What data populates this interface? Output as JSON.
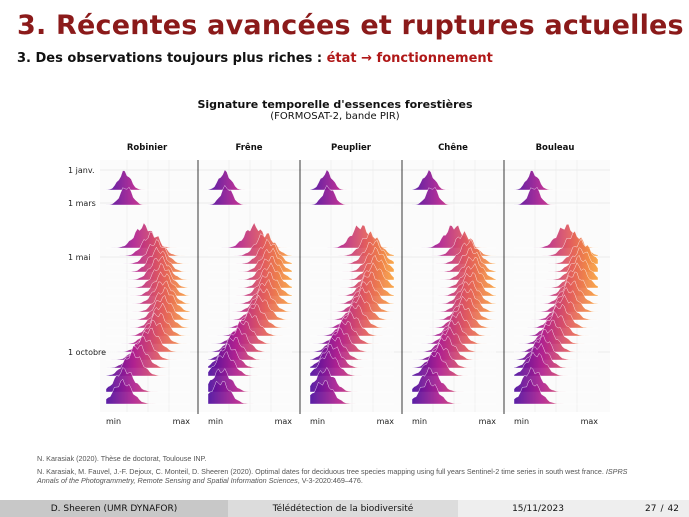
{
  "slide": {
    "title": "3. Récentes avancées et ruptures actuelles",
    "subtitle_prefix": "3. Des observations toujours plus riches : ",
    "subtitle_accent": "état → fonctionnement"
  },
  "chart_data": {
    "type": "ridgeline",
    "title": "Signature temporelle d'essences forestières",
    "subtitle": "(FORMOSAT-2, bande PIR)",
    "panels": [
      "Robinier",
      "Frêne",
      "Peuplier",
      "Chêne",
      "Bouleau"
    ],
    "date_labels": [
      "1 janv.",
      "1 mars",
      "1 mai",
      "1 octobre"
    ],
    "x_min_label": "min",
    "x_max_label": "max",
    "colorscale": [
      "#4b0c9e",
      "#b0208f",
      "#e25c5c",
      "#f9a13a"
    ],
    "ridge_peaks": {
      "Robinier": [
        0.22,
        0.24,
        0.45,
        0.55,
        0.6,
        0.62,
        0.64,
        0.66,
        0.68,
        0.68,
        0.7,
        0.68,
        0.66,
        0.62,
        0.58,
        0.52,
        0.45,
        0.38,
        0.32,
        0.22,
        0.2
      ],
      "Frêne": [
        0.2,
        0.22,
        0.55,
        0.68,
        0.72,
        0.74,
        0.74,
        0.74,
        0.72,
        0.7,
        0.66,
        0.62,
        0.56,
        0.5,
        0.42,
        0.36,
        0.3,
        0.24,
        0.2,
        0.16,
        0.15
      ],
      "Peuplier": [
        0.2,
        0.22,
        0.6,
        0.72,
        0.76,
        0.78,
        0.78,
        0.76,
        0.72,
        0.68,
        0.64,
        0.6,
        0.54,
        0.48,
        0.42,
        0.36,
        0.3,
        0.26,
        0.22,
        0.18,
        0.16
      ],
      "Chêne": [
        0.2,
        0.24,
        0.5,
        0.62,
        0.68,
        0.7,
        0.72,
        0.72,
        0.7,
        0.68,
        0.66,
        0.64,
        0.6,
        0.55,
        0.5,
        0.45,
        0.4,
        0.34,
        0.28,
        0.22,
        0.2
      ],
      "Bouleau": [
        0.22,
        0.24,
        0.62,
        0.72,
        0.8,
        0.8,
        0.78,
        0.76,
        0.72,
        0.68,
        0.64,
        0.6,
        0.55,
        0.5,
        0.45,
        0.4,
        0.34,
        0.3,
        0.26,
        0.22,
        0.2
      ]
    }
  },
  "references": {
    "ref1": "N. Karasiak (2020). Thèse de doctorat, Toulouse INP.",
    "ref2_plain": "N. Karasiak, M. Fauvel, J.-F. Dejoux, C. Monteil, D. Sheeren (2020). Optimal dates for deciduous tree species mapping using full years Sentinel-2 time series in south west france. ",
    "ref2_journal": "ISPRS Annals of the Photogrammetry, Remote Sensing and Spatial Information Sciences",
    "ref2_tail": ", V-3-2020:469–476."
  },
  "footer": {
    "author": "D. Sheeren (UMR DYNAFOR)",
    "course": "Télédétection de la biodiversité",
    "date": "15/11/2023",
    "page": "27",
    "sep": "/",
    "total": "42"
  }
}
